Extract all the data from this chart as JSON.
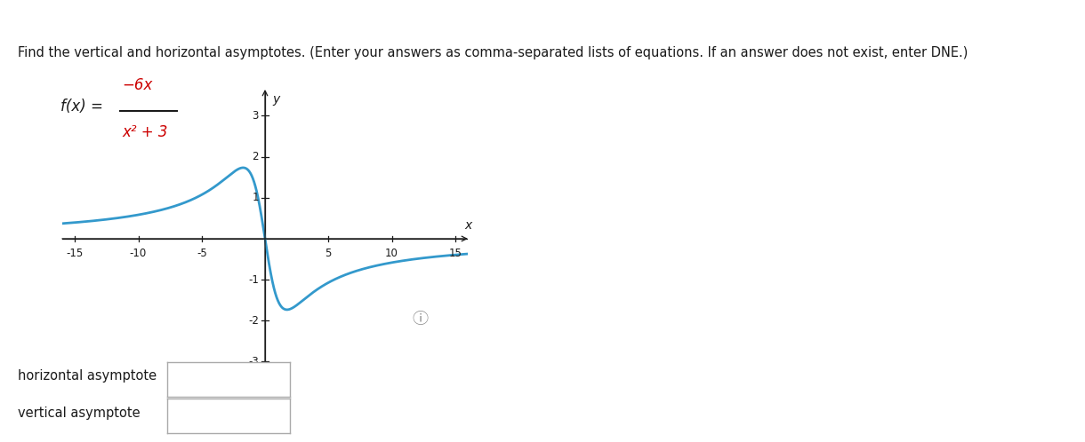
{
  "title_text": "Find the vertical and horizontal asymptotes. (Enter your answers as comma-separated lists of equations. If an answer does not exist, enter DNE.)",
  "title_fontsize": 10.5,
  "title_color": "#1a1a1a",
  "func_label_num": "−6x",
  "func_label_den": "x² + 3",
  "func_color_num": "#cc0000",
  "func_color_den": "#cc0000",
  "func_color_fx": "#1a1a1a",
  "graph_xlim": [
    -16,
    16
  ],
  "graph_ylim": [
    -3.6,
    3.6
  ],
  "graph_xticks": [
    -15,
    -10,
    -5,
    5,
    10,
    15
  ],
  "graph_yticks": [
    -3,
    -2,
    -1,
    1,
    2,
    3
  ],
  "curve_color": "#3399cc",
  "curve_linewidth": 2.0,
  "axis_color": "#1a1a1a",
  "tick_color": "#1a1a1a",
  "xlabel": "x",
  "ylabel": "y",
  "background_color": "#ffffff",
  "input_box_label1": "horizontal asymptote",
  "input_box_label2": "vertical asymptote",
  "info_circle_color": "#888888",
  "top_bar_color": "#555555"
}
